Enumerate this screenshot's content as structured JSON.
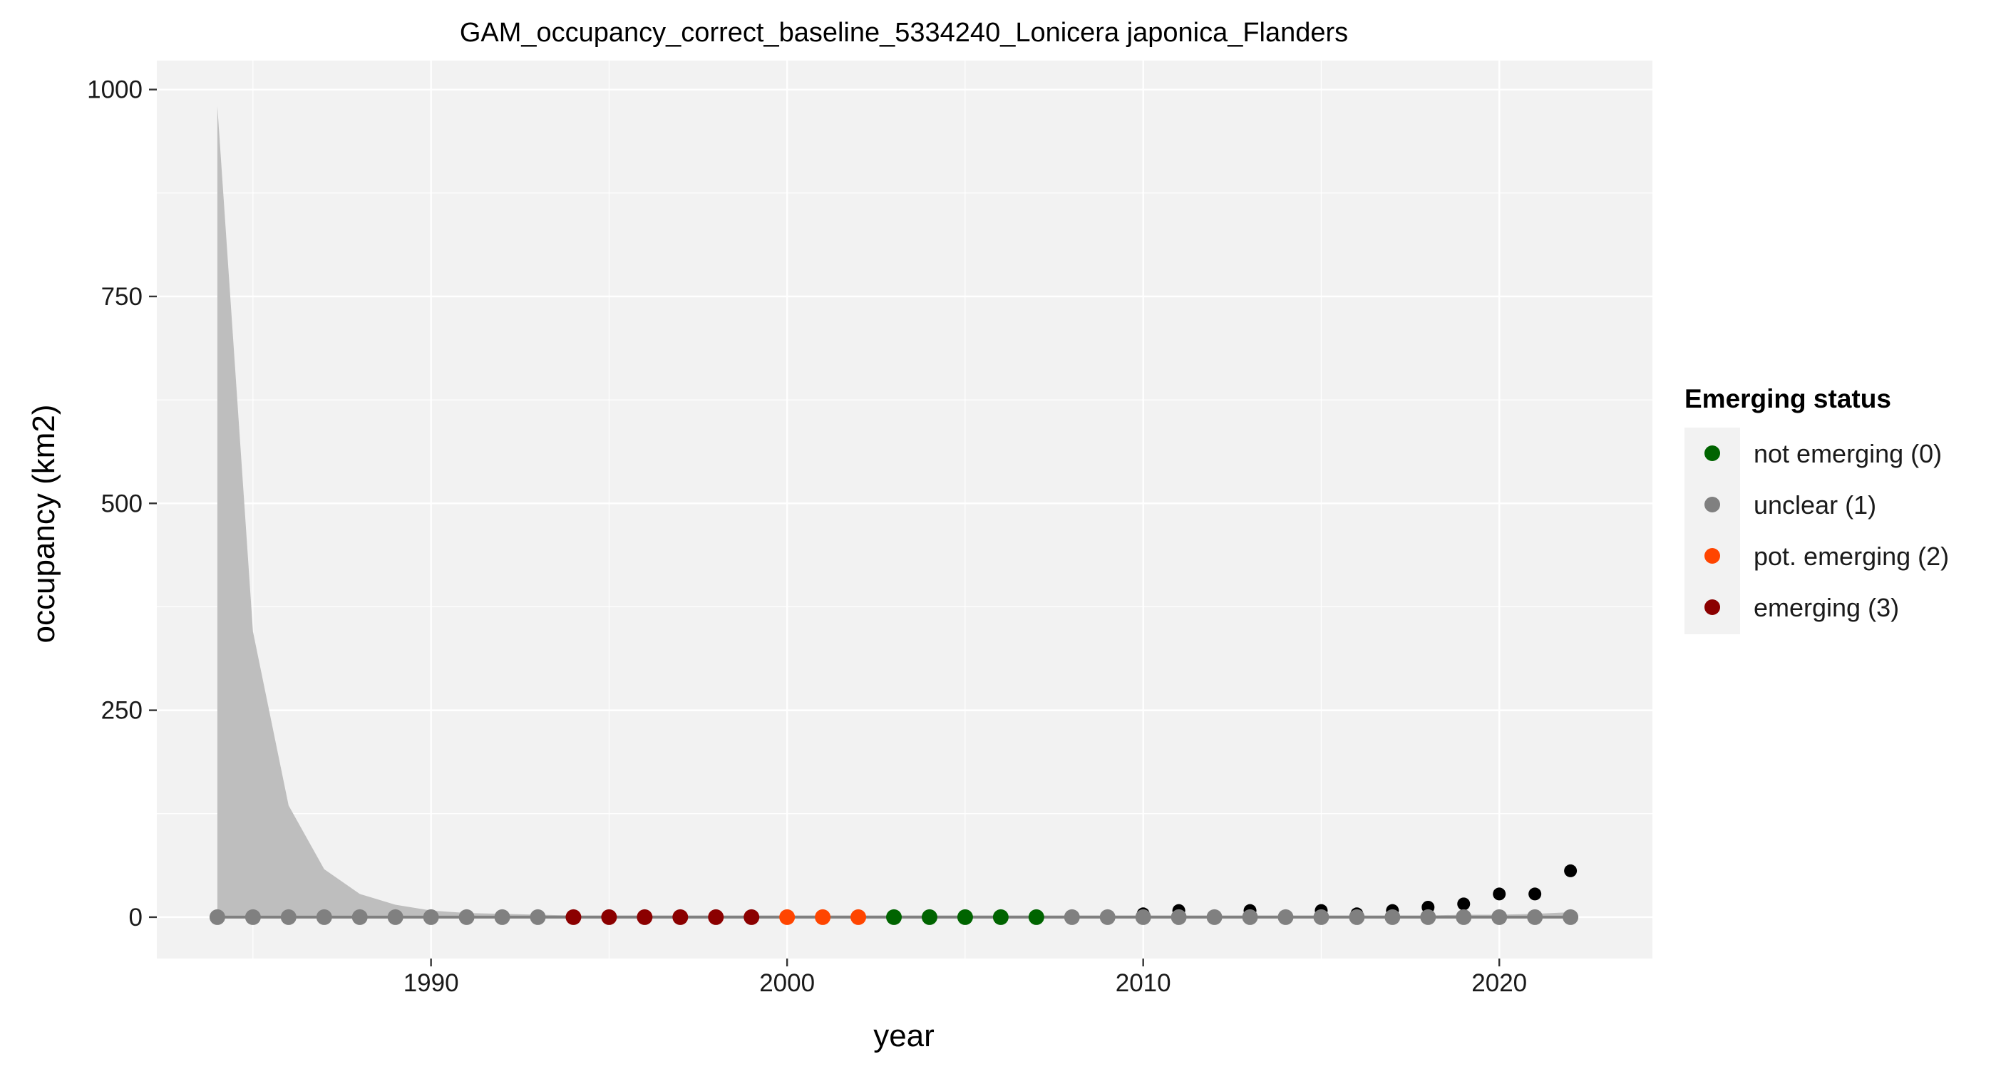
{
  "chart_data": {
    "type": "scatter",
    "title": "GAM_occupancy_correct_baseline_5334240_Lonicera japonica_Flanders",
    "xlabel": "year",
    "ylabel": "occupancy (km2)",
    "xlim": [
      1982.3,
      2024.3
    ],
    "ylim": [
      -50,
      1035
    ],
    "x_ticks": [
      1990,
      2000,
      2010,
      2020
    ],
    "y_ticks": [
      0,
      250,
      500,
      750,
      1000
    ],
    "legend": {
      "title": "Emerging status",
      "position": "right",
      "entries": [
        {
          "label": "not emerging (0)",
          "color": "#006400"
        },
        {
          "label": "unclear (1)",
          "color": "#808080"
        },
        {
          "label": "pot. emerging (2)",
          "color": "#FF4500"
        },
        {
          "label": "emerging (3)",
          "color": "#8B0000"
        }
      ]
    },
    "years": [
      1984,
      1985,
      1986,
      1987,
      1988,
      1989,
      1990,
      1991,
      1992,
      1993,
      1994,
      1995,
      1996,
      1997,
      1998,
      1999,
      2000,
      2001,
      2002,
      2003,
      2004,
      2005,
      2006,
      2007,
      2008,
      2009,
      2010,
      2011,
      2012,
      2013,
      2014,
      2015,
      2016,
      2017,
      2018,
      2019,
      2020,
      2021,
      2022
    ],
    "observed_occupancy": [
      0,
      0,
      0,
      0,
      0,
      0,
      0,
      0,
      0,
      0,
      0,
      0,
      0,
      0,
      0,
      0,
      0,
      0,
      0,
      0,
      0,
      0,
      0,
      0,
      0,
      0,
      4,
      8,
      0,
      8,
      0,
      8,
      4,
      8,
      12,
      16,
      28,
      28,
      56
    ],
    "fitted_occupancy": [
      0,
      0,
      0,
      0,
      0,
      0,
      0,
      0,
      0,
      0,
      0,
      0,
      0,
      0,
      0,
      0,
      0,
      0,
      0,
      0,
      0,
      0,
      0,
      0,
      0,
      0,
      0,
      0,
      0,
      0,
      0,
      0,
      0,
      0,
      0,
      0,
      0,
      0,
      0
    ],
    "ci_upper": [
      980,
      345,
      135,
      58,
      28,
      15,
      8,
      5,
      4,
      3,
      2,
      2,
      2,
      2,
      2,
      2,
      2,
      2,
      2,
      2,
      2,
      2,
      2,
      2,
      2,
      2,
      2,
      2,
      2,
      2,
      2,
      2,
      2,
      2,
      2,
      3,
      3,
      4,
      6
    ],
    "ci_lower": [
      0,
      0,
      0,
      0,
      0,
      0,
      0,
      0,
      0,
      0,
      0,
      0,
      0,
      0,
      0,
      0,
      0,
      0,
      0,
      0,
      0,
      0,
      0,
      0,
      0,
      0,
      0,
      0,
      0,
      0,
      0,
      0,
      0,
      0,
      0,
      0,
      0,
      0,
      0
    ],
    "emerging_status": [
      1,
      1,
      1,
      1,
      1,
      1,
      1,
      1,
      1,
      1,
      3,
      3,
      3,
      3,
      3,
      3,
      2,
      2,
      2,
      0,
      0,
      0,
      0,
      0,
      1,
      1,
      1,
      1,
      1,
      1,
      1,
      1,
      1,
      1,
      1,
      1,
      1,
      1,
      1
    ],
    "colors": {
      "panel_bg": "#F2F2F2",
      "grid": "#FFFFFF",
      "ribbon": "#BEBEBE",
      "fitted_line": "#808080",
      "observed": "#000000"
    }
  }
}
